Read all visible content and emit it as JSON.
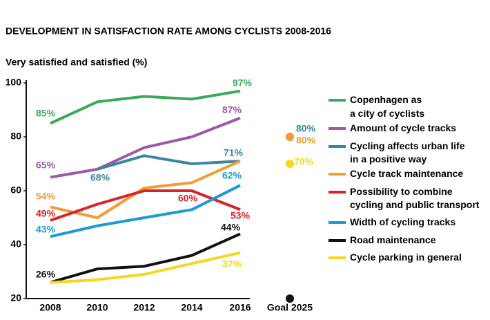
{
  "chart_data": {
    "type": "line",
    "title": "DEVELOPMENT IN SATISFACTION RATE AMONG CYCLISTS 2008-2016",
    "y_label": "Very satisfied and satisfied (%)",
    "categories": [
      "2008",
      "2010",
      "2012",
      "2014",
      "2016"
    ],
    "goal_label": "Goal 2025",
    "ylim": [
      20,
      100
    ],
    "yticks": [
      20,
      40,
      60,
      80,
      100
    ],
    "grid": false,
    "legend": "right",
    "series": [
      {
        "name": "Copenhagen as\na city of cyclists",
        "color": "#3aaa5a",
        "values": [
          85,
          93,
          95,
          94,
          97
        ],
        "value_labels": [
          "85%",
          null,
          null,
          null,
          "97%"
        ],
        "goal": null,
        "goal_label": null
      },
      {
        "name": "Amount of cycle tracks",
        "color": "#9b59a8",
        "values": [
          65,
          68,
          76,
          80,
          87
        ],
        "value_labels": [
          "65%",
          null,
          null,
          null,
          "87%"
        ],
        "goal": null,
        "goal_label": null
      },
      {
        "name": "Cycling affects urban life\nin a positive way",
        "color": "#3a86a0",
        "values": [
          null,
          68,
          73,
          70,
          71
        ],
        "value_labels": [
          null,
          "68%",
          null,
          null,
          "71%"
        ],
        "goal": 80,
        "goal_label": "80%"
      },
      {
        "name": "Cycle track maintenance",
        "color": "#f39c33",
        "values": [
          54,
          50,
          61,
          63,
          71
        ],
        "value_labels": [
          "54%",
          null,
          null,
          null,
          null
        ],
        "goal": 80,
        "goal_label": "80%"
      },
      {
        "name": "Possibility to combine\ncycling and public transport",
        "color": "#d9232a",
        "values": [
          49,
          55,
          60,
          60,
          53
        ],
        "value_labels": [
          "49%",
          null,
          null,
          "60%",
          "53%"
        ],
        "goal": null,
        "goal_label": null
      },
      {
        "name": "Width of cycling tracks",
        "color": "#1b9ad6",
        "values": [
          43,
          47,
          50,
          53,
          62
        ],
        "value_labels": [
          "43%",
          null,
          null,
          null,
          "62%"
        ],
        "goal": null,
        "goal_label": null
      },
      {
        "name": "Road maintenance",
        "color": "#111111",
        "values": [
          26,
          31,
          32,
          36,
          44
        ],
        "value_labels": [
          "26%",
          null,
          null,
          null,
          "44%"
        ],
        "goal": 20,
        "goal_label": null
      },
      {
        "name": "Cycle parking in general",
        "color": "#f5d81e",
        "values": [
          26,
          27,
          29,
          33,
          37
        ],
        "value_labels": [
          null,
          null,
          null,
          null,
          "37%"
        ],
        "goal": 70,
        "goal_label": "70%"
      }
    ]
  }
}
